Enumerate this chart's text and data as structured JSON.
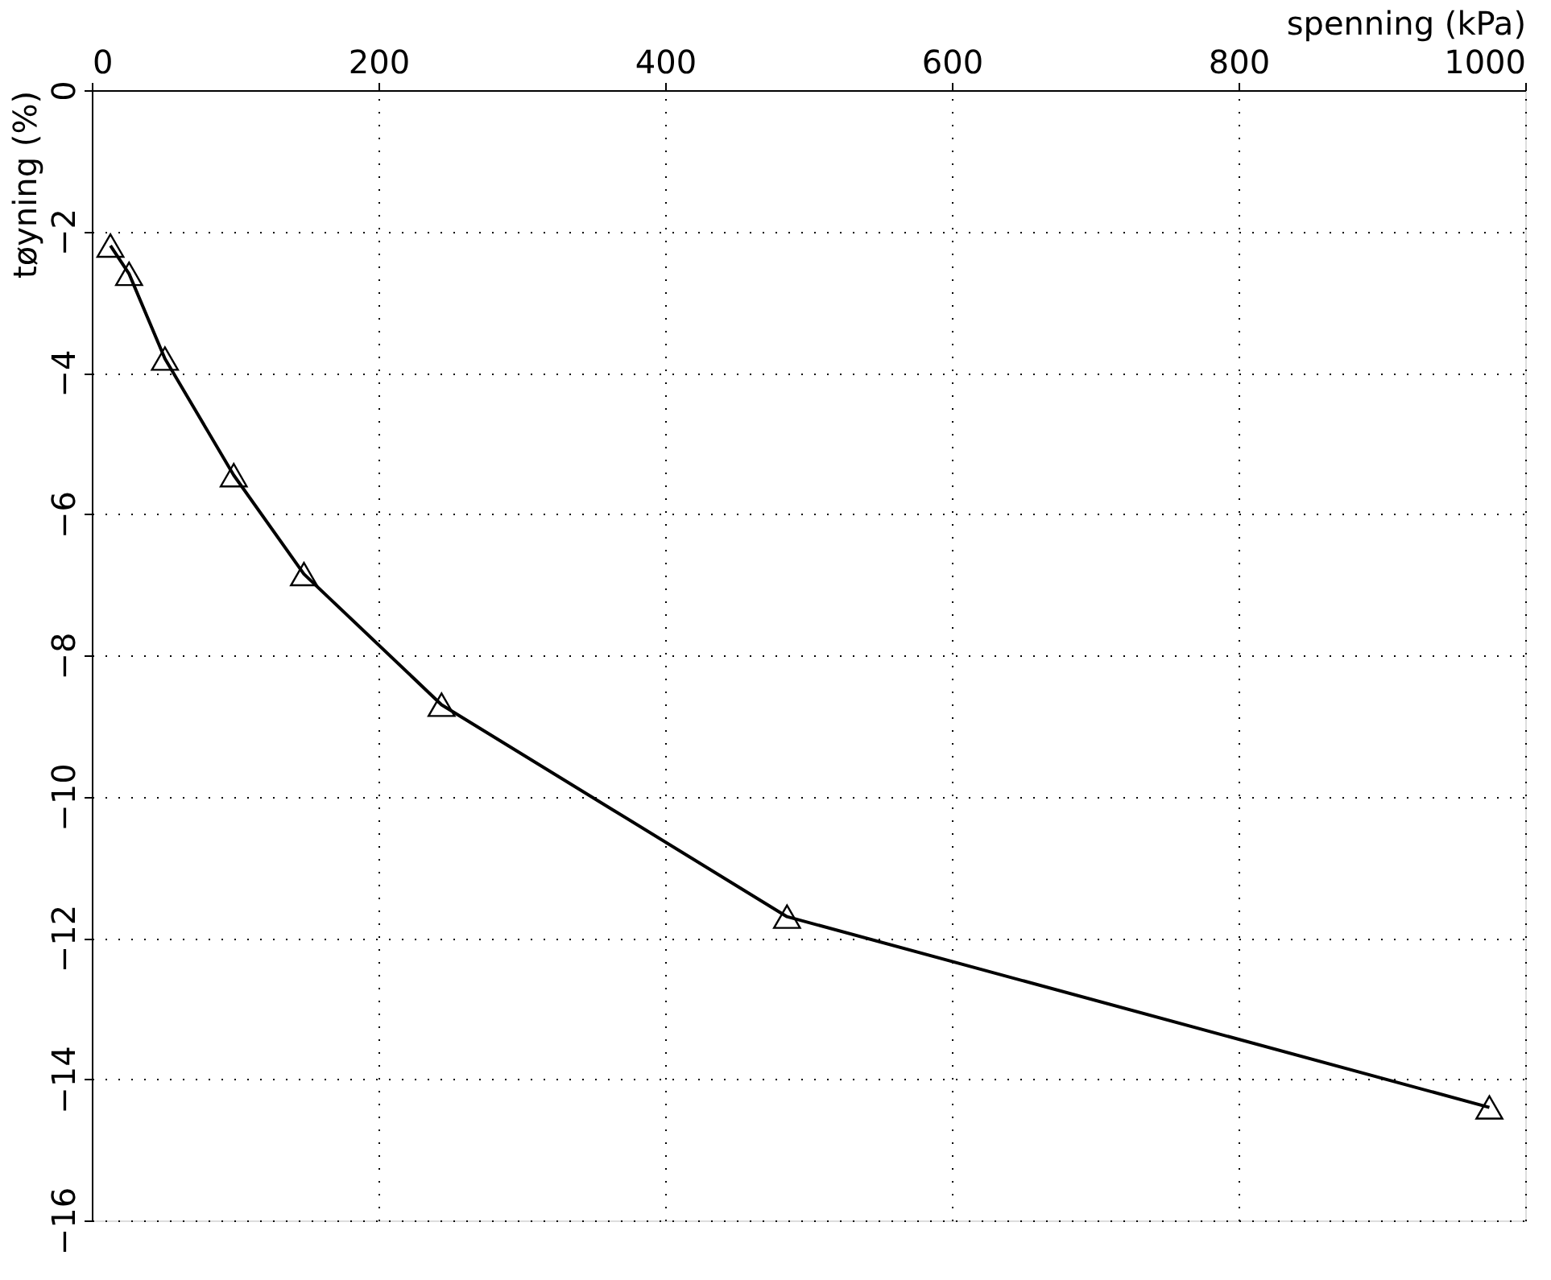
{
  "chart_data": {
    "type": "line",
    "xlabel": "spenning (kPa)",
    "ylabel": "tøyning (%)",
    "x": [
      13,
      26,
      51,
      99,
      148,
      244,
      485,
      975
    ],
    "series": [
      {
        "color": "#000000",
        "values": [
          -2.2,
          -2.6,
          -3.8,
          -5.45,
          -6.85,
          -8.7,
          -11.7,
          -14.4
        ]
      }
    ],
    "xlim": [
      0,
      1000
    ],
    "xticks": [
      0,
      200,
      400,
      600,
      800,
      1000
    ],
    "ylim": [
      -16,
      0
    ],
    "yticks": [
      0,
      -2,
      -4,
      -6,
      -8,
      -10,
      -12,
      -14,
      -16
    ],
    "grid": true,
    "marker": "triangle",
    "line_style": "solid"
  }
}
